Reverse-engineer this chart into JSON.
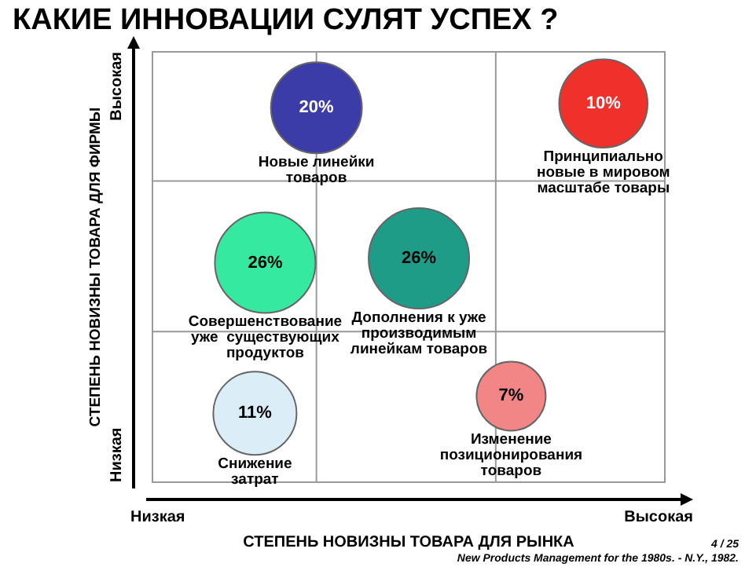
{
  "chart_data": {
    "type": "other",
    "title": "КАКИЕ ИННОВАЦИИ СУЛЯТ УСПЕХ ?",
    "xlabel": "СТЕПЕНЬ НОВИЗНЫ ТОВАРА ДЛЯ РЫНКА",
    "ylabel": "СТЕПЕНЬ НОВИЗНЫ ТОВАРА ДЛЯ ФИРМЫ",
    "categories": [
      "Новые линейки\nтоваров",
      "Принципиально\nновые в мировом\nмасштабе товары",
      "Совершенствование\nуже  существующих\nпродуктов",
      "Дополнения к уже\nпроизводимым\nлинейкам товаров",
      "Снижение\nзатрат",
      "Изменение\nпозиционирования\nтоваров"
    ],
    "values": [
      20,
      10,
      26,
      26,
      11,
      7
    ],
    "colors": [
      "#3c3ca8",
      "#f0302a",
      "#35eaa0",
      "#1e9c88",
      "#dbeef8",
      "#f28585"
    ],
    "value_labels": [
      "20%",
      "10%",
      "26%",
      "26%",
      "11%",
      "7%"
    ],
    "legend": false,
    "annotations": [
      "Низкая",
      "Высокая",
      "Низкая",
      "Высокая",
      "New Products Management for the 1980s. - N.Y., 1982.",
      "4 / 25"
    ]
  }
}
